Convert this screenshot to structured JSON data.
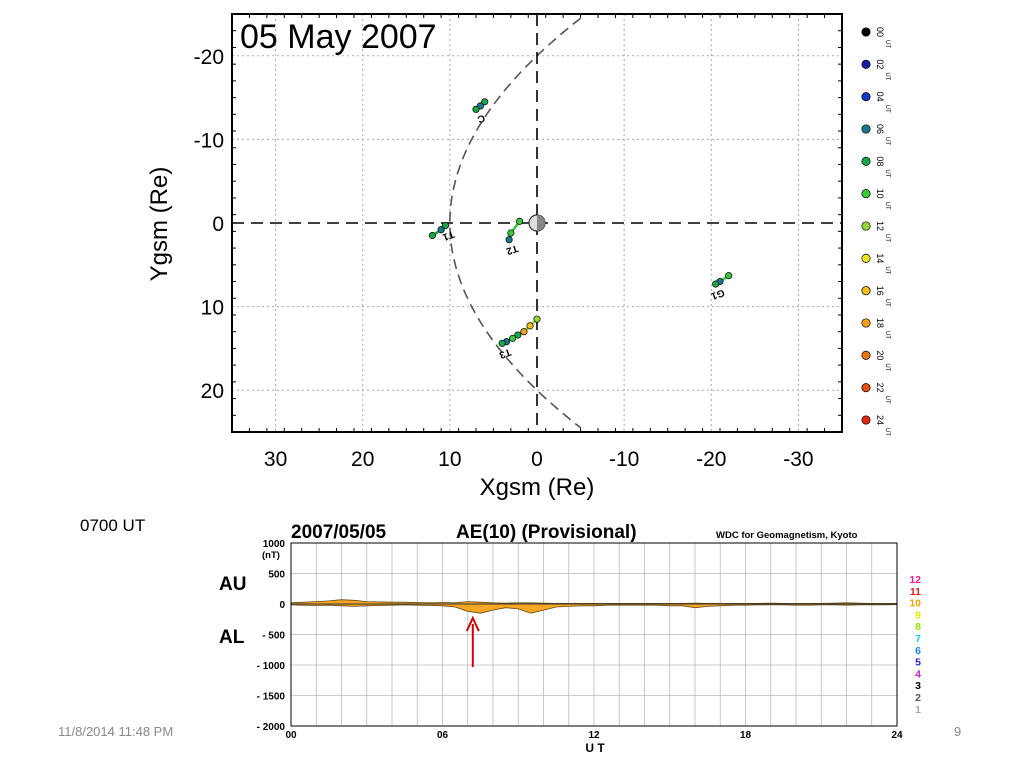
{
  "slide": {
    "time_caption": "0700 UT",
    "footer_datetime": "11/8/2014 11:48 PM",
    "page_number": "9"
  },
  "chart_data": [
    {
      "type": "scatter",
      "title": "05 May 2007",
      "title_color": "#e8001c",
      "xlabel": "Xgsm (Re)",
      "ylabel": "Ygsm (Re)",
      "xlim": [
        35,
        -35
      ],
      "ylim": [
        -25,
        25
      ],
      "x_ticks": [
        30,
        20,
        10,
        0,
        -10,
        -20,
        -30
      ],
      "y_ticks": [
        -20,
        -10,
        0,
        10,
        20
      ],
      "grid": true,
      "origin_symbol": "Earth (half-lit circle)",
      "magnetopause_boundary": "dashed parabola, nose near x = 10",
      "legend": {
        "position": "right",
        "entries": [
          {
            "label": "00",
            "unit": "UT",
            "color": "#000000"
          },
          {
            "label": "02",
            "unit": "UT",
            "color": "#1a1aa6"
          },
          {
            "label": "04",
            "unit": "UT",
            "color": "#1a38c8"
          },
          {
            "label": "06",
            "unit": "UT",
            "color": "#1a7a8c"
          },
          {
            "label": "08",
            "unit": "UT",
            "color": "#19a64a"
          },
          {
            "label": "10",
            "unit": "UT",
            "color": "#3cc83c"
          },
          {
            "label": "12",
            "unit": "UT",
            "color": "#9ad63c"
          },
          {
            "label": "14",
            "unit": "UT",
            "color": "#e6e61e"
          },
          {
            "label": "16",
            "unit": "UT",
            "color": "#f0c01e"
          },
          {
            "label": "18",
            "unit": "UT",
            "color": "#f0a01e"
          },
          {
            "label": "20",
            "unit": "UT",
            "color": "#e67814"
          },
          {
            "label": "22",
            "unit": "UT",
            "color": "#e65014"
          },
          {
            "label": "24",
            "unit": "UT",
            "color": "#e02814"
          }
        ]
      },
      "tracks": [
        {
          "label": "C",
          "points": [
            [
              6.0,
              -14.5
            ],
            [
              6.5,
              -14.0
            ],
            [
              7.0,
              -13.6
            ]
          ],
          "colors": [
            "#19a64a",
            "#1a7a8c",
            "#19a64a"
          ]
        },
        {
          "label": "T1",
          "points": [
            [
              12.0,
              1.5
            ],
            [
              11.0,
              0.8
            ],
            [
              10.5,
              0.3
            ]
          ],
          "colors": [
            "#19a64a",
            "#1a7a8c",
            "#19a64a"
          ]
        },
        {
          "label": "T2",
          "points": [
            [
              2.0,
              -0.2
            ],
            [
              3.0,
              1.2
            ],
            [
              3.2,
              2.0
            ]
          ],
          "colors": [
            "#3cc83c",
            "#3cc83c",
            "#1a7a8c"
          ]
        },
        {
          "label": "G1",
          "points": [
            [
              -22.0,
              6.3
            ],
            [
              -21.0,
              7.0
            ],
            [
              -20.5,
              7.3
            ]
          ],
          "colors": [
            "#3cc83c",
            "#1a7a8c",
            "#19a64a"
          ]
        },
        {
          "label": "T3",
          "points": [
            [
              0.0,
              11.5
            ],
            [
              0.8,
              12.3
            ],
            [
              1.5,
              13.0
            ],
            [
              2.2,
              13.4
            ],
            [
              2.8,
              13.8
            ],
            [
              3.5,
              14.2
            ],
            [
              4.0,
              14.4
            ]
          ],
          "colors": [
            "#9ad63c",
            "#f0c01e",
            "#f0a01e",
            "#19a64a",
            "#3cc83c",
            "#1a7a8c",
            "#19a64a"
          ]
        }
      ]
    },
    {
      "type": "area",
      "title": "2007/05/05",
      "index_title": "AE(10) (Provisional)",
      "source": "WDC for Geomagnetism, Kyoto",
      "ylabel": "1000 (nT)",
      "y_unit": "(nT)",
      "xlabel": "U T",
      "xlim": [
        0,
        24
      ],
      "ylim": [
        -2000,
        1000
      ],
      "x_ticks": [
        "00",
        "06",
        "12",
        "18",
        "24"
      ],
      "y_ticks": [
        "1000",
        "500",
        "0",
        "- 500",
        "- 1000",
        "- 1500",
        "- 2000"
      ],
      "side_labels": {
        "upper": "AU",
        "lower": "AL"
      },
      "fill_color": "#f5a623",
      "arrow_at_ut": 7.2,
      "arrow_color": "#d00000",
      "month_legend": [
        {
          "label": "12",
          "color": "#e0208c"
        },
        {
          "label": "11",
          "color": "#e02020"
        },
        {
          "label": "10",
          "color": "#f5a000"
        },
        {
          "label": "9",
          "color": "#e6e600"
        },
        {
          "label": "8",
          "color": "#8ce600"
        },
        {
          "label": "7",
          "color": "#20c8e6"
        },
        {
          "label": "6",
          "color": "#2080e6"
        },
        {
          "label": "5",
          "color": "#2020c8"
        },
        {
          "label": "4",
          "color": "#c820c8"
        },
        {
          "label": "3",
          "color": "#000000"
        },
        {
          "label": "2",
          "color": "#555555"
        },
        {
          "label": "1",
          "color": "#aaaaaa"
        }
      ],
      "ut_hours": [
        0,
        0.5,
        1,
        1.5,
        2,
        2.5,
        3,
        3.5,
        4,
        4.5,
        5,
        5.5,
        6,
        6.5,
        7,
        7.5,
        8,
        8.5,
        9,
        9.5,
        10,
        10.5,
        11,
        11.5,
        12,
        12.5,
        13,
        13.5,
        14,
        14.5,
        15,
        15.5,
        16,
        16.5,
        17,
        17.5,
        18,
        18.5,
        19,
        19.5,
        20,
        20.5,
        21,
        21.5,
        22,
        22.5,
        23,
        23.5,
        24
      ],
      "au_nT": [
        20,
        30,
        40,
        50,
        70,
        60,
        40,
        35,
        30,
        30,
        25,
        20,
        25,
        20,
        40,
        30,
        20,
        15,
        20,
        20,
        15,
        10,
        10,
        10,
        10,
        10,
        10,
        10,
        10,
        10,
        10,
        10,
        15,
        10,
        10,
        10,
        10,
        10,
        15,
        10,
        10,
        10,
        10,
        15,
        20,
        15,
        10,
        10,
        10
      ],
      "al_nT": [
        -15,
        -20,
        -25,
        -20,
        -30,
        -40,
        -30,
        -25,
        -20,
        -15,
        -20,
        -25,
        -30,
        -50,
        -120,
        -150,
        -100,
        -60,
        -80,
        -150,
        -100,
        -50,
        -40,
        -30,
        -30,
        -20,
        -20,
        -20,
        -20,
        -20,
        -30,
        -30,
        -60,
        -40,
        -30,
        -20,
        -20,
        -15,
        -15,
        -15,
        -20,
        -20,
        -15,
        -15,
        -20,
        -15,
        -15,
        -15,
        -10
      ]
    }
  ]
}
